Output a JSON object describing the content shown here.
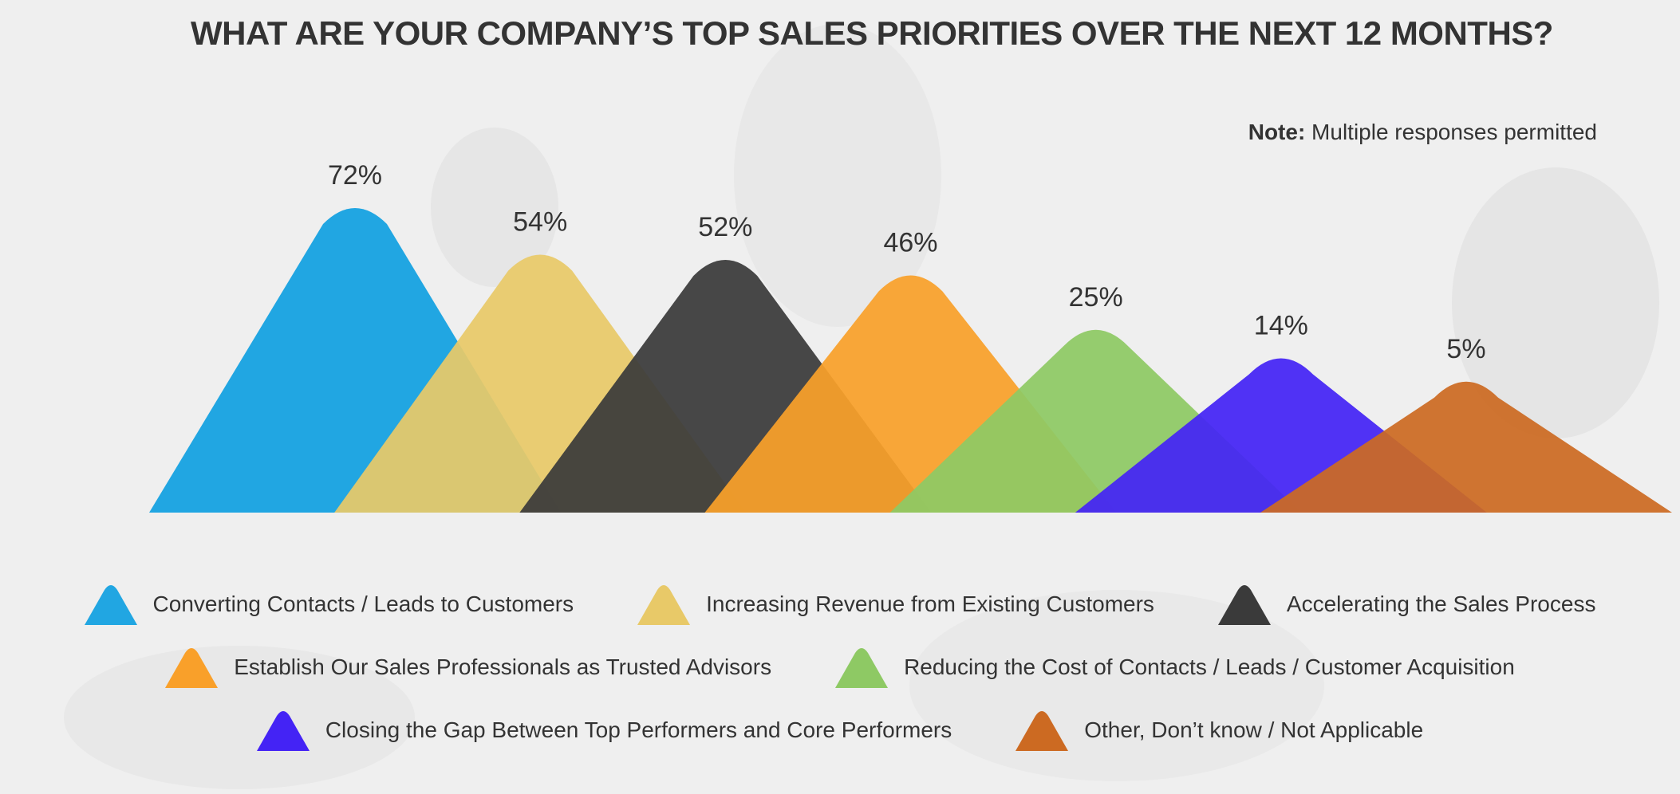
{
  "page_title": "WHAT ARE YOUR COMPANY’S TOP SALES PRIORITIES OVER THE NEXT 12 MONTHS?",
  "note": {
    "label": "Note:",
    "text": "Multiple responses permitted"
  },
  "chart_data": {
    "type": "bar",
    "shape": "rounded-triangle",
    "title": "WHAT ARE YOUR COMPANY’S TOP SALES PRIORITIES OVER THE NEXT 12 MONTHS?",
    "xlabel": "",
    "ylabel": "",
    "unit": "%",
    "ylim": [
      0,
      100
    ],
    "grid": false,
    "legend_position": "bottom",
    "categories": [
      "Converting Contacts / Leads to Customers",
      "Increasing Revenue from Existing Customers",
      "Accelerating the Sales Process",
      "Establish Our Sales Professionals as Trusted Advisors",
      "Reducing the Cost of Contacts / Leads / Customer Acquisition",
      "Closing the Gap Between Top Performers and Core Performers",
      "Other, Don’t know / Not Applicable"
    ],
    "values": [
      72,
      54,
      52,
      46,
      25,
      14,
      5
    ],
    "data_labels": [
      "72%",
      "54%",
      "52%",
      "46%",
      "25%",
      "14%",
      "5%"
    ],
    "colors": [
      "#21a6e2",
      "#e8c968",
      "#3a3a3a",
      "#f9a02a",
      "#8ec964",
      "#4423f5",
      "#cc6a22"
    ]
  },
  "legend_rows": [
    [
      0,
      1,
      2
    ],
    [
      3,
      4
    ],
    [
      5,
      6
    ]
  ]
}
